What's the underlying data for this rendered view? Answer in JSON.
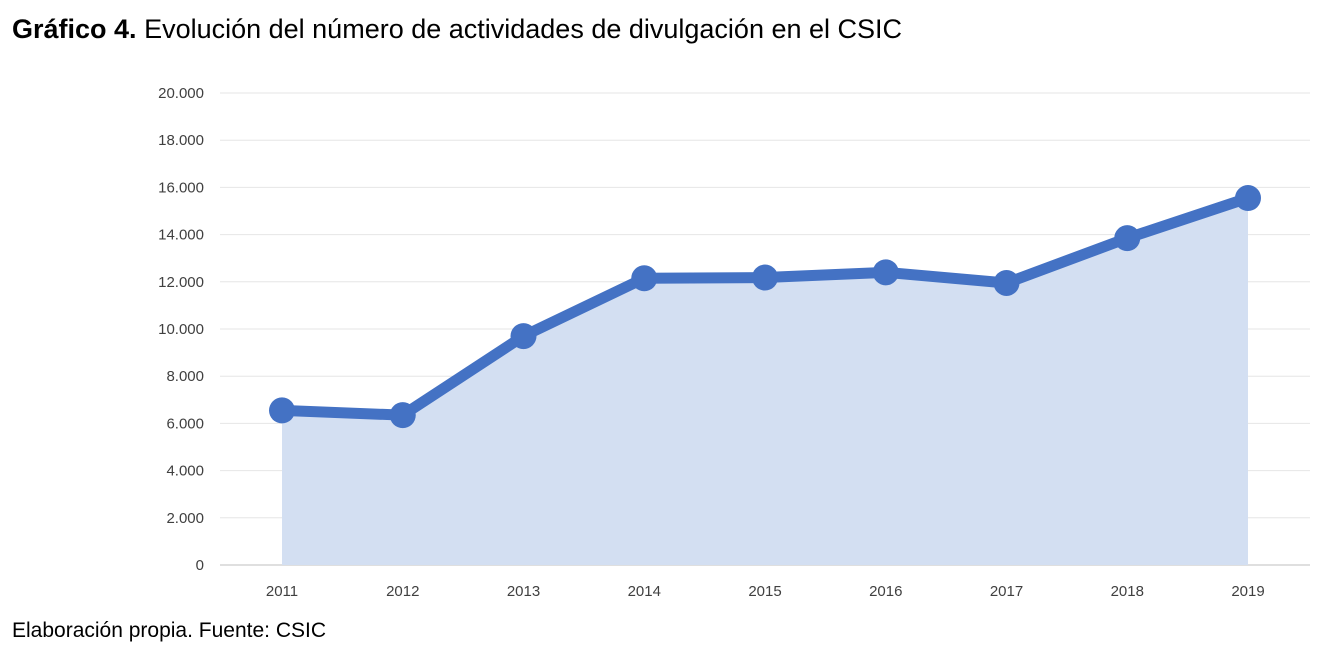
{
  "title": {
    "prefix": "Gráfico 4.",
    "text": "Evolución del número de actividades de divulgación en el CSIC"
  },
  "source": "Elaboración propia. Fuente: CSIC",
  "colors": {
    "line": "#4472c4",
    "area": "#d3dff2",
    "grid": "#e6e6e6"
  },
  "chart_data": {
    "type": "area",
    "x": [
      "2011",
      "2012",
      "2013",
      "2014",
      "2015",
      "2016",
      "2017",
      "2018",
      "2019"
    ],
    "series": [
      {
        "values": [
          6550,
          6350,
          9700,
          12150,
          12180,
          12400,
          11950,
          13850,
          15550
        ]
      }
    ],
    "ylim": [
      0,
      20000
    ],
    "yticks": [
      0,
      2000,
      4000,
      6000,
      8000,
      10000,
      12000,
      14000,
      16000,
      18000,
      20000
    ],
    "ytick_labels": [
      "0",
      "2.000",
      "4.000",
      "6.000",
      "8.000",
      "10.000",
      "12.000",
      "14.000",
      "16.000",
      "18.000",
      "20.000"
    ],
    "grid": true,
    "legend": "none",
    "markers": true
  }
}
